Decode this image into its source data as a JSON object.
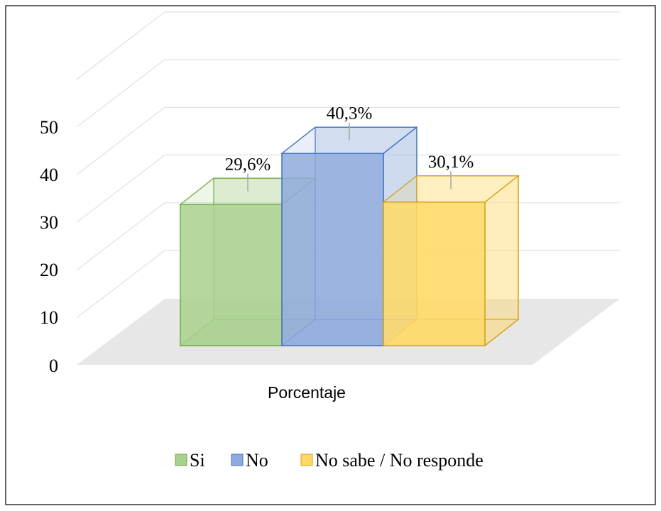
{
  "chart_data": {
    "type": "bar",
    "categories": [
      "Porcentaje"
    ],
    "series": [
      {
        "name": "Si",
        "values": [
          29.6
        ],
        "label": "29,6%",
        "color": "#a9d18e",
        "edge": "#70ad47"
      },
      {
        "name": "No",
        "values": [
          40.3
        ],
        "label": "40,3%",
        "color": "#8faadc",
        "edge": "#4472c4"
      },
      {
        "name": "No sabe / No responde",
        "values": [
          30.1
        ],
        "label": "30,1%",
        "color": "#ffd966",
        "edge": "#d4a017"
      }
    ],
    "y_ticks": [
      "0",
      "10",
      "20",
      "30",
      "40",
      "50"
    ],
    "ylim": [
      0,
      50
    ],
    "grid": true,
    "legend_position": "bottom",
    "style": "3d-column"
  }
}
